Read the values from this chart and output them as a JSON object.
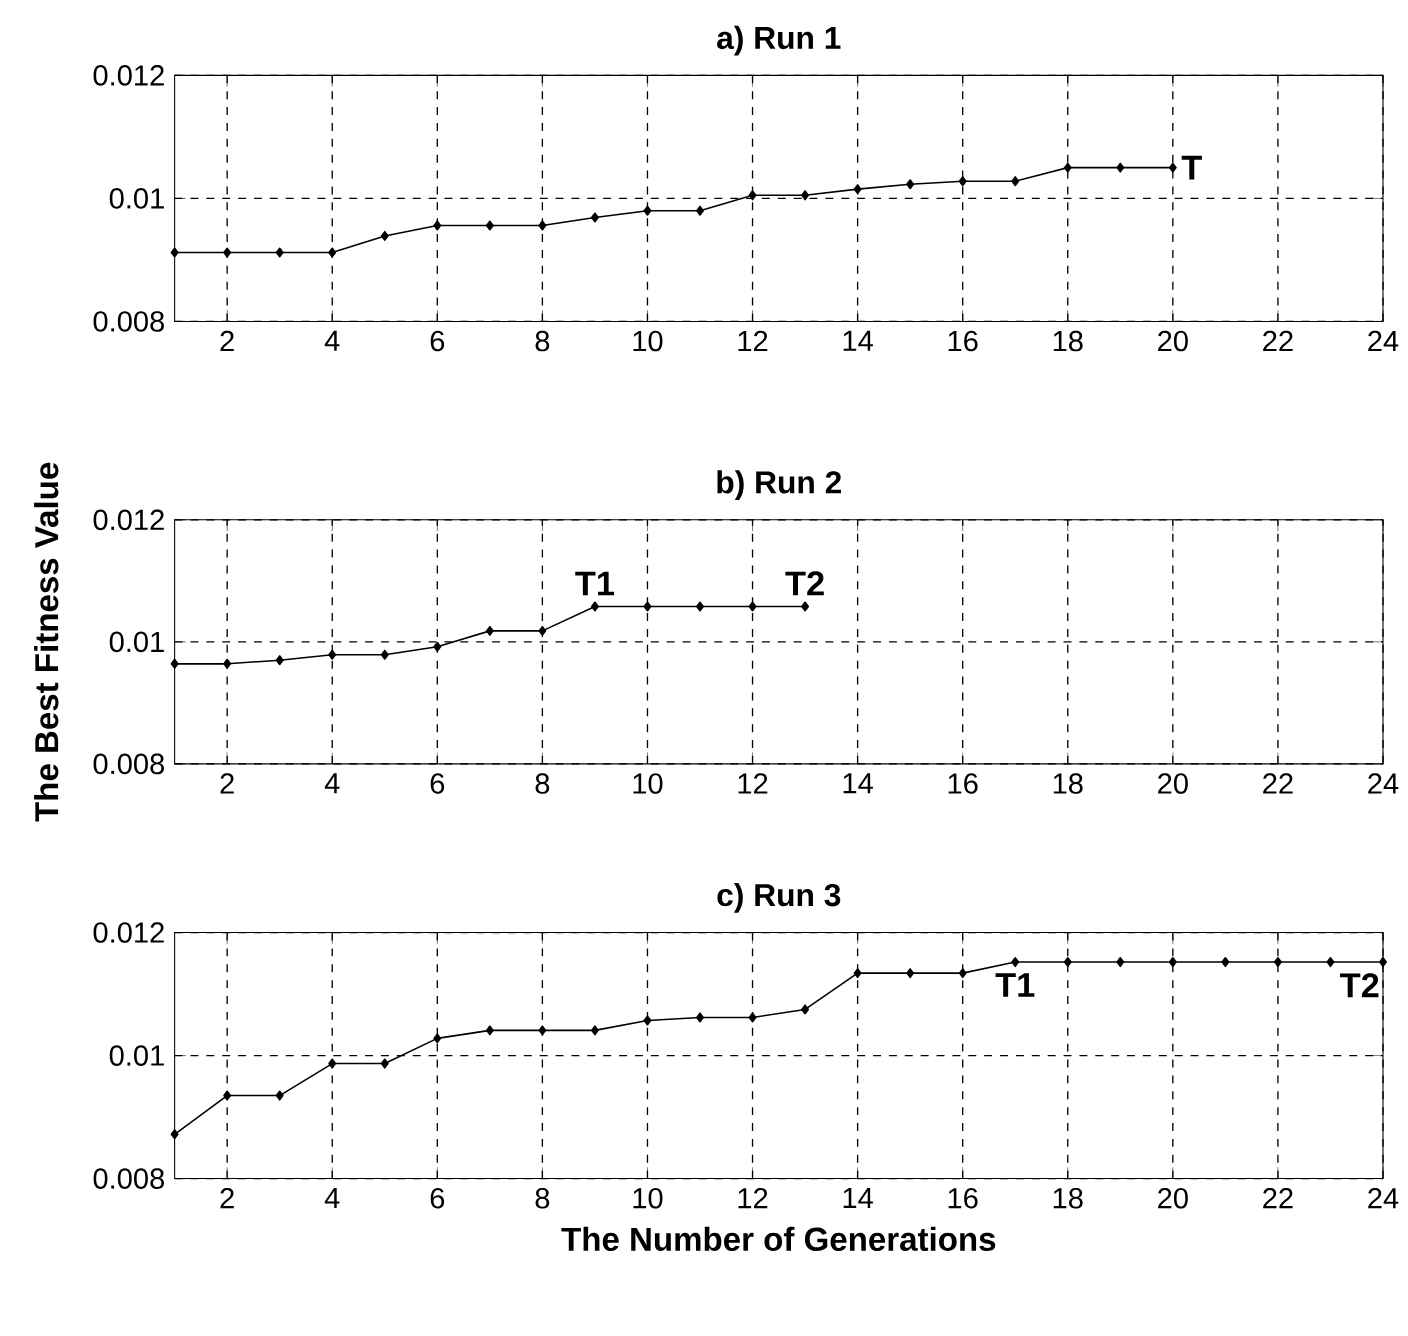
{
  "chart_data": [
    {
      "type": "line",
      "title": "a)  Run 1",
      "x": [
        1,
        2,
        3,
        4,
        5,
        6,
        7,
        8,
        9,
        10,
        11,
        12,
        13,
        14,
        15,
        16,
        17,
        18,
        19,
        20
      ],
      "series": [
        {
          "color": "#000000",
          "values": [
            0.00912,
            0.00912,
            0.00912,
            0.00912,
            0.00939,
            0.00956,
            0.00956,
            0.00956,
            0.00969,
            0.0098,
            0.0098,
            0.01005,
            0.01005,
            0.01015,
            0.01023,
            0.01028,
            0.01028,
            0.0105,
            0.0105,
            0.0105
          ]
        }
      ],
      "xlim": [
        1,
        24
      ],
      "ylim": [
        0.008,
        0.012
      ],
      "xticks": [
        2,
        4,
        6,
        8,
        10,
        12,
        14,
        16,
        18,
        20,
        22,
        24
      ],
      "yticks": [
        {
          "value": 0.008,
          "label": "0.008"
        },
        {
          "value": 0.01,
          "label": "0.01"
        },
        {
          "value": 0.012,
          "label": "0.012"
        }
      ],
      "grid": true,
      "marker": "diamond",
      "line_style": "solid",
      "annotations": [
        {
          "text": "T",
          "x": 20,
          "y": 0.0105
        }
      ]
    },
    {
      "type": "line",
      "title": "b)  Run 2",
      "ylabel": "The Best Fitness Value",
      "x": [
        1,
        2,
        3,
        4,
        5,
        6,
        7,
        8,
        9,
        10,
        11,
        12,
        13
      ],
      "series": [
        {
          "color": "#000000",
          "values": [
            0.00964,
            0.00964,
            0.0097,
            0.00979,
            0.00979,
            0.00992,
            0.01018,
            0.01018,
            0.01058,
            0.01058,
            0.01058,
            0.01058,
            0.01058
          ]
        }
      ],
      "xlim": [
        1,
        24
      ],
      "ylim": [
        0.008,
        0.012
      ],
      "xticks": [
        2,
        4,
        6,
        8,
        10,
        12,
        14,
        16,
        18,
        20,
        22,
        24
      ],
      "yticks": [
        {
          "value": 0.008,
          "label": "0.008"
        },
        {
          "value": 0.01,
          "label": "0.01"
        },
        {
          "value": 0.012,
          "label": "0.012"
        }
      ],
      "grid": true,
      "marker": "diamond",
      "line_style": "solid",
      "annotations": [
        {
          "text": "T1",
          "x": 9,
          "y": 0.01058
        },
        {
          "text": "T2",
          "x": 13,
          "y": 0.01058
        }
      ]
    },
    {
      "type": "line",
      "title": "c)  Run 3",
      "xlabel": "The Number of Generations",
      "x": [
        1,
        2,
        3,
        4,
        5,
        6,
        7,
        8,
        9,
        10,
        11,
        12,
        13,
        14,
        15,
        16,
        17,
        18,
        19,
        20,
        21,
        22,
        23,
        24
      ],
      "series": [
        {
          "color": "#000000",
          "values": [
            0.00872,
            0.00935,
            0.00935,
            0.00987,
            0.00987,
            0.01028,
            0.01041,
            0.01041,
            0.01041,
            0.01057,
            0.01062,
            0.01062,
            0.01075,
            0.01134,
            0.01134,
            0.01134,
            0.01152,
            0.01152,
            0.01152,
            0.01152,
            0.01152,
            0.01152,
            0.01152,
            0.01152
          ]
        }
      ],
      "xlim": [
        1,
        24
      ],
      "ylim": [
        0.008,
        0.012
      ],
      "xticks": [
        2,
        4,
        6,
        8,
        10,
        12,
        14,
        16,
        18,
        20,
        22,
        24
      ],
      "yticks": [
        {
          "value": 0.008,
          "label": "0.008"
        },
        {
          "value": 0.01,
          "label": "0.01"
        },
        {
          "value": 0.012,
          "label": "0.012"
        }
      ],
      "grid": true,
      "marker": "diamond",
      "line_style": "solid",
      "annotations": [
        {
          "text": "T1",
          "x": 17,
          "y": 0.01152
        },
        {
          "text": "T2",
          "x": 24,
          "y": 0.01152
        }
      ]
    }
  ]
}
